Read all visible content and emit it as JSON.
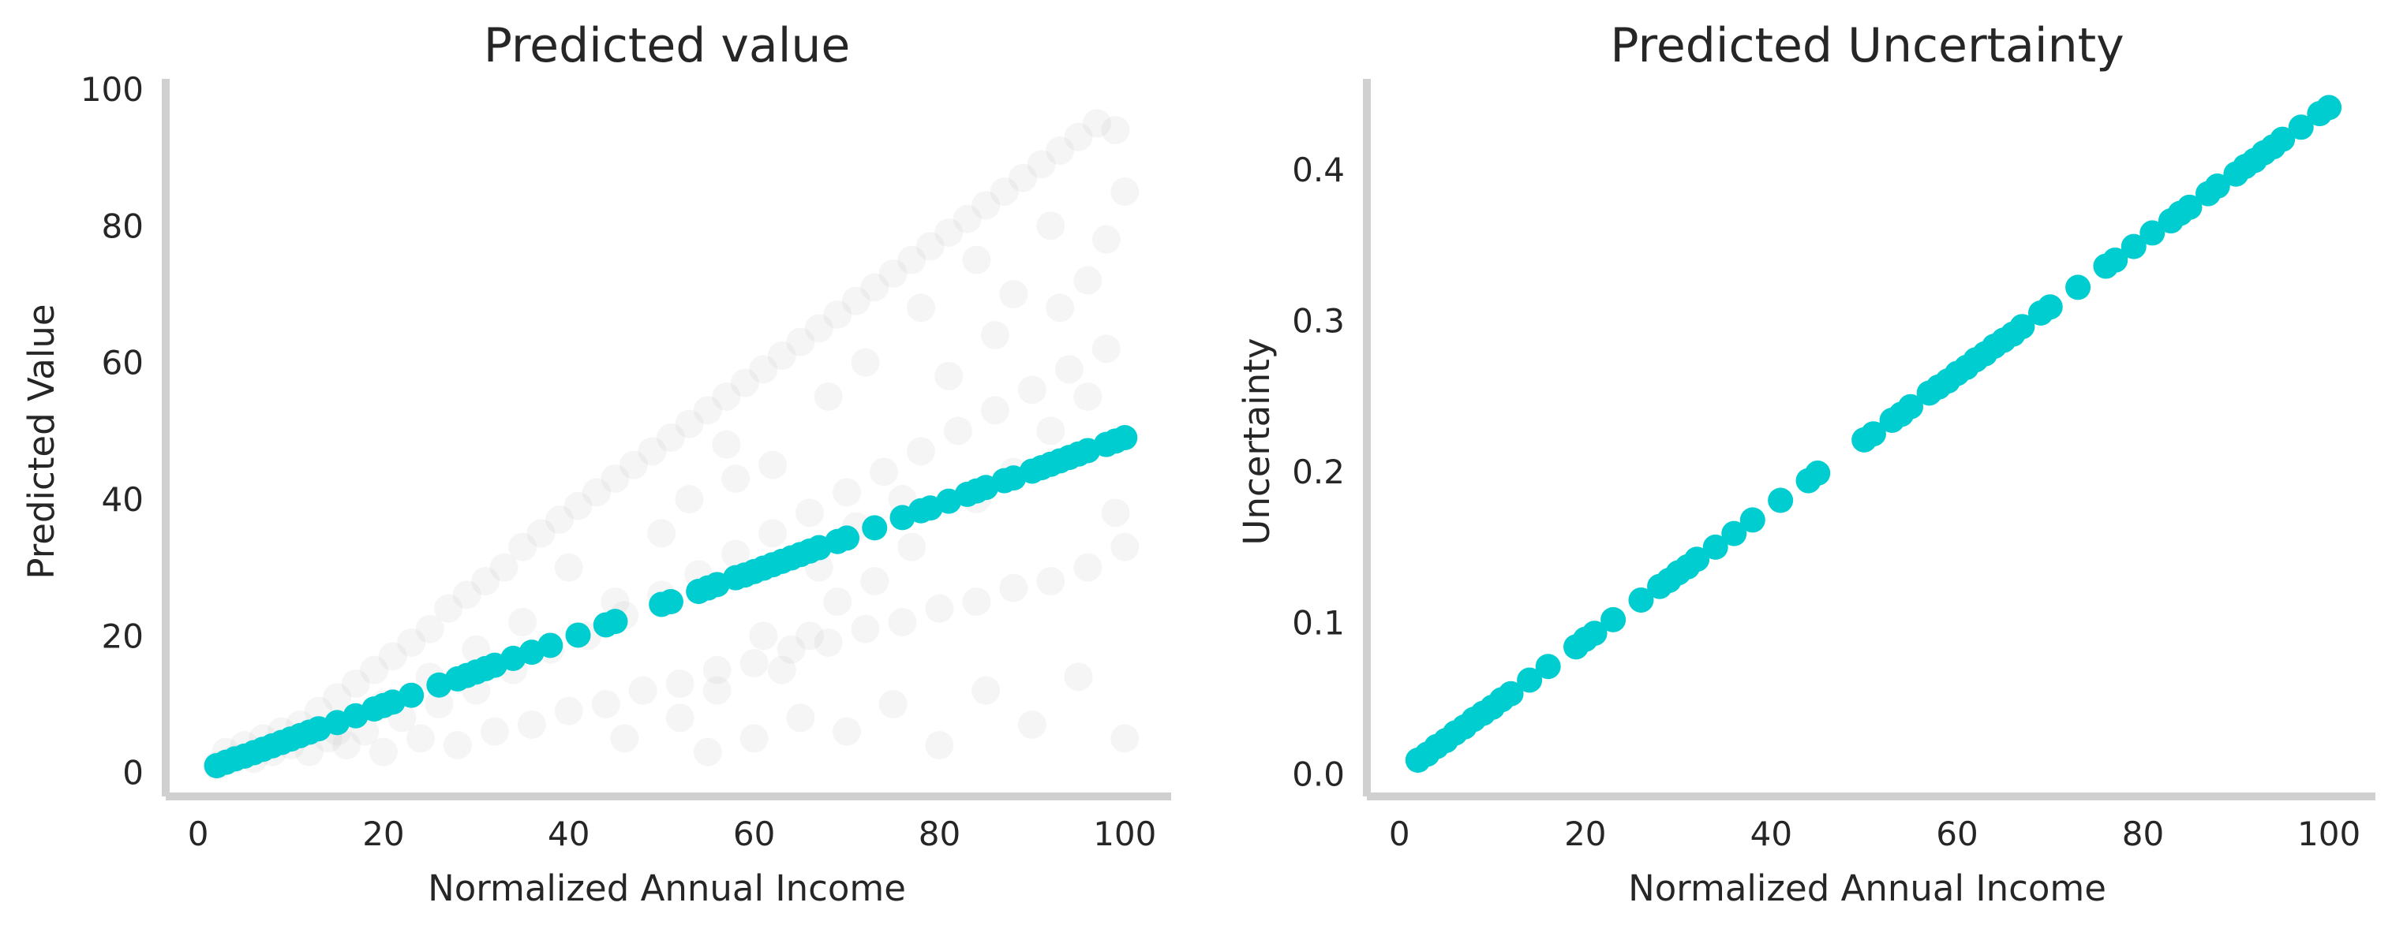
{
  "chart_data": [
    {
      "type": "scatter",
      "title": "Predicted value",
      "xlabel": "Normalized Annual Income",
      "ylabel": "Predicted Value",
      "xlim": [
        -3.5,
        105
      ],
      "ylim": [
        -3.5,
        101.5
      ],
      "xticks": [
        "0",
        "20",
        "40",
        "60",
        "80",
        "100"
      ],
      "yticks": [
        "0",
        "20",
        "40",
        "60",
        "80",
        "100"
      ],
      "grid": false,
      "series": [
        {
          "role": "observed (faint gray background points)",
          "color": "#c8c8c8",
          "points": [
            [
              2,
              1
            ],
            [
              3,
              3
            ],
            [
              4,
              2
            ],
            [
              5,
              4
            ],
            [
              6,
              2
            ],
            [
              7,
              5
            ],
            [
              8,
              3
            ],
            [
              9,
              6
            ],
            [
              10,
              4
            ],
            [
              11,
              7
            ],
            [
              12,
              3
            ],
            [
              13,
              9
            ],
            [
              14,
              5
            ],
            [
              15,
              11
            ],
            [
              16,
              4
            ],
            [
              17,
              13
            ],
            [
              18,
              6
            ],
            [
              19,
              15
            ],
            [
              20,
              3
            ],
            [
              21,
              17
            ],
            [
              22,
              8
            ],
            [
              23,
              19
            ],
            [
              24,
              5
            ],
            [
              25,
              21
            ],
            [
              26,
              10
            ],
            [
              27,
              24
            ],
            [
              28,
              4
            ],
            [
              29,
              26
            ],
            [
              30,
              12
            ],
            [
              31,
              28
            ],
            [
              32,
              6
            ],
            [
              33,
              30
            ],
            [
              34,
              15
            ],
            [
              35,
              33
            ],
            [
              36,
              7
            ],
            [
              37,
              35
            ],
            [
              38,
              18
            ],
            [
              39,
              37
            ],
            [
              40,
              9
            ],
            [
              41,
              39
            ],
            [
              42,
              20
            ],
            [
              43,
              41
            ],
            [
              44,
              10
            ],
            [
              45,
              43
            ],
            [
              46,
              23
            ],
            [
              47,
              45
            ],
            [
              48,
              12
            ],
            [
              49,
              47
            ],
            [
              50,
              26
            ],
            [
              51,
              49
            ],
            [
              52,
              13
            ],
            [
              53,
              51
            ],
            [
              54,
              29
            ],
            [
              55,
              53
            ],
            [
              56,
              15
            ],
            [
              57,
              55
            ],
            [
              58,
              32
            ],
            [
              59,
              57
            ],
            [
              60,
              16
            ],
            [
              61,
              59
            ],
            [
              62,
              35
            ],
            [
              63,
              61
            ],
            [
              64,
              18
            ],
            [
              65,
              63
            ],
            [
              66,
              38
            ],
            [
              67,
              65
            ],
            [
              68,
              19
            ],
            [
              69,
              67
            ],
            [
              70,
              41
            ],
            [
              71,
              69
            ],
            [
              72,
              21
            ],
            [
              73,
              71
            ],
            [
              74,
              44
            ],
            [
              75,
              73
            ],
            [
              76,
              22
            ],
            [
              77,
              75
            ],
            [
              78,
              47
            ],
            [
              79,
              77
            ],
            [
              80,
              24
            ],
            [
              81,
              79
            ],
            [
              82,
              50
            ],
            [
              83,
              81
            ],
            [
              84,
              25
            ],
            [
              85,
              83
            ],
            [
              86,
              53
            ],
            [
              87,
              85
            ],
            [
              88,
              27
            ],
            [
              89,
              87
            ],
            [
              90,
              56
            ],
            [
              91,
              89
            ],
            [
              92,
              28
            ],
            [
              93,
              91
            ],
            [
              94,
              59
            ],
            [
              95,
              93
            ],
            [
              96,
              30
            ],
            [
              97,
              95
            ],
            [
              98,
              62
            ],
            [
              99,
              94
            ],
            [
              100,
              33
            ],
            [
              100,
              85
            ],
            [
              60,
              5
            ],
            [
              65,
              8
            ],
            [
              70,
              6
            ],
            [
              75,
              10
            ],
            [
              80,
              4
            ],
            [
              85,
              12
            ],
            [
              90,
              7
            ],
            [
              95,
              14
            ],
            [
              100,
              5
            ],
            [
              55,
              3
            ],
            [
              62,
              45
            ],
            [
              68,
              55
            ],
            [
              72,
              60
            ],
            [
              78,
              68
            ],
            [
              84,
              75
            ],
            [
              88,
              70
            ],
            [
              92,
              80
            ],
            [
              96,
              72
            ],
            [
              98,
              78
            ],
            [
              58,
              43
            ],
            [
              45,
              25
            ],
            [
              50,
              35
            ],
            [
              53,
              40
            ],
            [
              57,
              48
            ],
            [
              40,
              30
            ],
            [
              35,
              22
            ],
            [
              30,
              18
            ],
            [
              25,
              14
            ],
            [
              20,
              10
            ],
            [
              15,
              6
            ],
            [
              84,
              40
            ],
            [
              88,
              44
            ],
            [
              92,
              50
            ],
            [
              96,
              55
            ],
            [
              99,
              38
            ],
            [
              77,
              33
            ],
            [
              73,
              28
            ],
            [
              69,
              25
            ],
            [
              66,
              20
            ],
            [
              63,
              15
            ],
            [
              46,
              5
            ],
            [
              52,
              8
            ],
            [
              56,
              12
            ],
            [
              61,
              20
            ],
            [
              67,
              30
            ],
            [
              71,
              36
            ],
            [
              76,
              40
            ],
            [
              81,
              58
            ],
            [
              86,
              64
            ],
            [
              93,
              68
            ]
          ]
        },
        {
          "role": "predicted (teal points)",
          "color": "#00cdd0",
          "points": [
            [
              2,
              1
            ],
            [
              3,
              1.5
            ],
            [
              4,
              2
            ],
            [
              5,
              2.4
            ],
            [
              6,
              2.9
            ],
            [
              7,
              3.4
            ],
            [
              8,
              3.9
            ],
            [
              9,
              4.4
            ],
            [
              10,
              4.9
            ],
            [
              11,
              5.4
            ],
            [
              12,
              5.9
            ],
            [
              13,
              6.4
            ],
            [
              15,
              7.3
            ],
            [
              17,
              8.3
            ],
            [
              19,
              9.3
            ],
            [
              20,
              9.8
            ],
            [
              21,
              10.3
            ],
            [
              23,
              11.3
            ],
            [
              26,
              12.8
            ],
            [
              28,
              13.7
            ],
            [
              29,
              14.2
            ],
            [
              30,
              14.7
            ],
            [
              31,
              15.2
            ],
            [
              32,
              15.7
            ],
            [
              34,
              16.7
            ],
            [
              36,
              17.6
            ],
            [
              38,
              18.6
            ],
            [
              41,
              20.1
            ],
            [
              44,
              21.6
            ],
            [
              45,
              22.1
            ],
            [
              50,
              24.6
            ],
            [
              51,
              25
            ],
            [
              54,
              26.5
            ],
            [
              55,
              27
            ],
            [
              56,
              27.5
            ],
            [
              58,
              28.5
            ],
            [
              59,
              28.9
            ],
            [
              60,
              29.4
            ],
            [
              61,
              29.9
            ],
            [
              62,
              30.4
            ],
            [
              63,
              30.9
            ],
            [
              64,
              31.4
            ],
            [
              65,
              31.9
            ],
            [
              66,
              32.4
            ],
            [
              67,
              32.9
            ],
            [
              69,
              33.8
            ],
            [
              70,
              34.3
            ],
            [
              73,
              35.8
            ],
            [
              76,
              37.3
            ],
            [
              78,
              38.3
            ],
            [
              79,
              38.7
            ],
            [
              81,
              39.7
            ],
            [
              83,
              40.7
            ],
            [
              84,
              41.2
            ],
            [
              85,
              41.7
            ],
            [
              87,
              42.7
            ],
            [
              88,
              43.1
            ],
            [
              90,
              44.1
            ],
            [
              91,
              44.6
            ],
            [
              92,
              45.1
            ],
            [
              93,
              45.6
            ],
            [
              94,
              46.1
            ],
            [
              95,
              46.6
            ],
            [
              96,
              47.1
            ],
            [
              98,
              48
            ],
            [
              99,
              48.5
            ],
            [
              100,
              49
            ]
          ]
        }
      ]
    },
    {
      "type": "scatter",
      "title": "Predicted Uncertainty",
      "xlabel": "Normalized Annual Income",
      "ylabel": "Uncertainty",
      "xlim": [
        -3.5,
        105
      ],
      "ylim": [
        -0.015,
        0.46
      ],
      "xticks": [
        "0",
        "20",
        "40",
        "60",
        "80",
        "100"
      ],
      "yticks": [
        "0.0",
        "0.1",
        "0.2",
        "0.3",
        "0.4"
      ],
      "grid": false,
      "series": [
        {
          "role": "predicted uncertainty (teal points)",
          "color": "#00cdd0",
          "points": [
            [
              2,
              0.009
            ],
            [
              3,
              0.013
            ],
            [
              4,
              0.018
            ],
            [
              5,
              0.022
            ],
            [
              6,
              0.027
            ],
            [
              7,
              0.031
            ],
            [
              8,
              0.036
            ],
            [
              9,
              0.04
            ],
            [
              10,
              0.044
            ],
            [
              11,
              0.049
            ],
            [
              12,
              0.053
            ],
            [
              14,
              0.062
            ],
            [
              16,
              0.071
            ],
            [
              19,
              0.084
            ],
            [
              20,
              0.089
            ],
            [
              21,
              0.093
            ],
            [
              23,
              0.102
            ],
            [
              26,
              0.115
            ],
            [
              28,
              0.124
            ],
            [
              29,
              0.128
            ],
            [
              30,
              0.133
            ],
            [
              31,
              0.137
            ],
            [
              32,
              0.142
            ],
            [
              34,
              0.15
            ],
            [
              36,
              0.159
            ],
            [
              38,
              0.168
            ],
            [
              41,
              0.181
            ],
            [
              44,
              0.194
            ],
            [
              45,
              0.199
            ],
            [
              50,
              0.221
            ],
            [
              51,
              0.225
            ],
            [
              53,
              0.234
            ],
            [
              54,
              0.238
            ],
            [
              55,
              0.243
            ],
            [
              57,
              0.252
            ],
            [
              58,
              0.256
            ],
            [
              59,
              0.26
            ],
            [
              60,
              0.265
            ],
            [
              61,
              0.269
            ],
            [
              62,
              0.274
            ],
            [
              63,
              0.278
            ],
            [
              64,
              0.283
            ],
            [
              65,
              0.287
            ],
            [
              66,
              0.291
            ],
            [
              67,
              0.296
            ],
            [
              69,
              0.305
            ],
            [
              70,
              0.309
            ],
            [
              73,
              0.322
            ],
            [
              76,
              0.336
            ],
            [
              77,
              0.34
            ],
            [
              79,
              0.349
            ],
            [
              81,
              0.358
            ],
            [
              83,
              0.366
            ],
            [
              84,
              0.371
            ],
            [
              85,
              0.375
            ],
            [
              87,
              0.384
            ],
            [
              88,
              0.389
            ],
            [
              90,
              0.397
            ],
            [
              91,
              0.402
            ],
            [
              92,
              0.406
            ],
            [
              93,
              0.411
            ],
            [
              94,
              0.415
            ],
            [
              95,
              0.42
            ],
            [
              97,
              0.428
            ],
            [
              99,
              0.437
            ],
            [
              100,
              0.441
            ]
          ]
        }
      ]
    }
  ]
}
